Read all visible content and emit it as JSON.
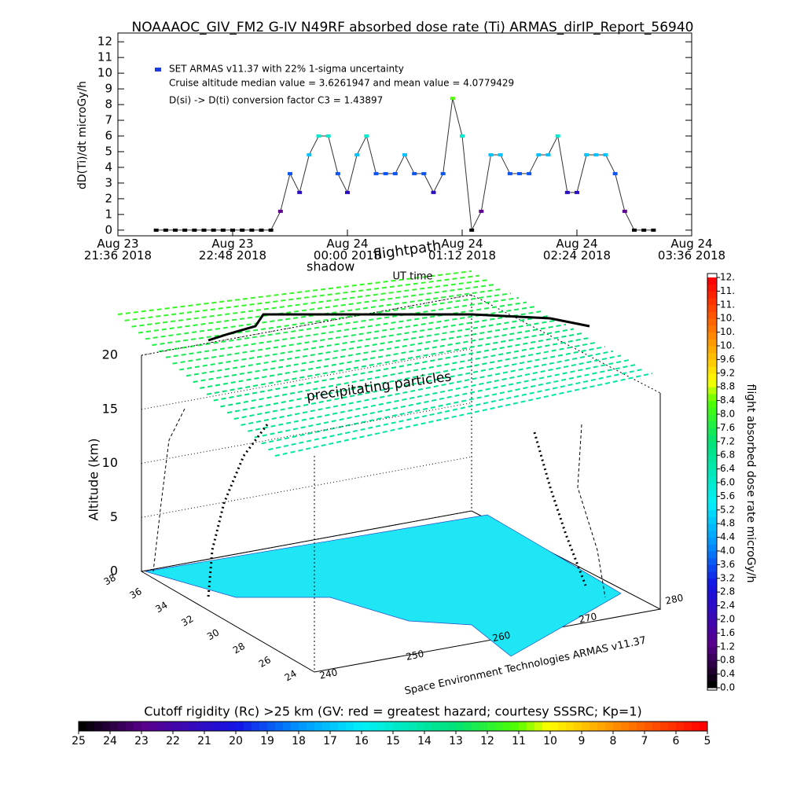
{
  "chart_data": [
    {
      "type": "scatter",
      "title": "NOAAAOC_GIV_FM2 G-IV   N49RF  absorbed dose rate (Ti) ARMAS_dirIP_Report_56940",
      "ylabel": "dD(Ti)/dt microGy/h",
      "xlabel": "UT time",
      "xlim": [
        21.6,
        27.6
      ],
      "xticks": [
        {
          "value": 21.6,
          "label": "Aug 23\n21:36 2018"
        },
        {
          "value": 22.8,
          "label": "Aug 23\n22:48 2018"
        },
        {
          "value": 24.0,
          "label": "Aug 24\n00:00 2018"
        },
        {
          "value": 25.2,
          "label": "Aug 24\n01:12 2018"
        },
        {
          "value": 26.4,
          "label": "Aug 24\n02:24 2018"
        },
        {
          "value": 27.6,
          "label": "Aug 24\n03:36 2018"
        }
      ],
      "ylim": [
        -0.36,
        12.56
      ],
      "yticks": [
        0,
        1,
        2,
        3,
        4,
        5,
        6,
        7,
        8,
        9,
        10,
        11,
        12
      ],
      "annotations": [
        "Cruise altitude median value = 3.6261947 and mean value = 4.0779429",
        "D(si) -> D(ti) conversion factor C3 = 1.43897"
      ],
      "series": [
        {
          "name": "SET ARMAS v11.37 with 22% 1-sigma uncertainty",
          "color": "#1e3cdc",
          "x": [
            22.0,
            22.1,
            22.2,
            22.3,
            22.4,
            22.5,
            22.6,
            22.7,
            22.8,
            22.9,
            23.0,
            23.1,
            23.2,
            23.3,
            23.4,
            23.5,
            23.6,
            23.7,
            23.8,
            23.9,
            24.0,
            24.1,
            24.2,
            24.3,
            24.4,
            24.5,
            24.6,
            24.7,
            24.8,
            24.9,
            25.0,
            25.1,
            25.2,
            25.3,
            25.4,
            25.5,
            25.6,
            25.7,
            25.8,
            25.9,
            26.0,
            26.1,
            26.2,
            26.3,
            26.4,
            26.5,
            26.6,
            26.7,
            26.8,
            26.9,
            27.0,
            27.1,
            27.2
          ],
          "values": [
            0,
            0,
            0,
            0,
            0,
            0,
            0,
            0,
            0,
            0,
            0,
            0,
            0,
            1.2,
            3.6,
            2.4,
            4.8,
            6.0,
            6.0,
            3.6,
            2.4,
            4.8,
            6.0,
            3.6,
            3.6,
            3.6,
            4.8,
            3.6,
            3.6,
            2.4,
            3.6,
            8.4,
            6.0,
            0,
            1.2,
            4.8,
            4.8,
            3.6,
            3.6,
            3.6,
            4.8,
            4.8,
            6.0,
            2.4,
            2.4,
            4.8,
            4.8,
            4.8,
            3.6,
            1.2,
            0,
            0,
            0
          ]
        }
      ]
    },
    {
      "type": "surface3d",
      "annotations": [
        "flightpath",
        "shadow",
        "precipitating particles"
      ],
      "zlabel": "Altitude (km)",
      "zlim": [
        0,
        20
      ],
      "zticks": [
        0,
        5,
        10,
        15,
        20
      ],
      "latticks": [
        38,
        36,
        34,
        32,
        30,
        28,
        26,
        24
      ],
      "lonticks": [
        240,
        250,
        260,
        270,
        280
      ],
      "credit": "Space Environment Technologies ARMAS v11.37"
    },
    {
      "type": "colorbar",
      "orientation": "vertical",
      "label": "flight absorbed dose rate microGy/h",
      "lim": [
        0,
        12
      ],
      "ticks": [
        {
          "value": 0,
          "label": "0.0"
        },
        {
          "value": 0.4,
          "label": "0.4"
        },
        {
          "value": 0.8,
          "label": "0.8"
        },
        {
          "value": 1.2,
          "label": "1.2"
        },
        {
          "value": 1.6,
          "label": "1.6"
        },
        {
          "value": 2.0,
          "label": "2.0"
        },
        {
          "value": 2.4,
          "label": "2.4"
        },
        {
          "value": 2.8,
          "label": "2.8"
        },
        {
          "value": 3.2,
          "label": "3.2"
        },
        {
          "value": 3.6,
          "label": "3.6"
        },
        {
          "value": 4.0,
          "label": "4.0"
        },
        {
          "value": 4.4,
          "label": "4.4"
        },
        {
          "value": 4.8,
          "label": "4.8"
        },
        {
          "value": 5.2,
          "label": "5.2"
        },
        {
          "value": 5.6,
          "label": "5.6"
        },
        {
          "value": 6.0,
          "label": "6.0"
        },
        {
          "value": 6.4,
          "label": "6.4"
        },
        {
          "value": 6.8,
          "label": "6.8"
        },
        {
          "value": 7.2,
          "label": "7.2"
        },
        {
          "value": 7.6,
          "label": "7.6"
        },
        {
          "value": 8.0,
          "label": "8.0"
        },
        {
          "value": 8.4,
          "label": "8.4"
        },
        {
          "value": 8.8,
          "label": "8.8"
        },
        {
          "value": 9.2,
          "label": "9.2"
        },
        {
          "value": 9.6,
          "label": "9.6"
        },
        {
          "value": 10,
          "label": "10."
        },
        {
          "value": 10.4,
          "label": "10."
        },
        {
          "value": 10.8,
          "label": "10."
        },
        {
          "value": 11.2,
          "label": "11."
        },
        {
          "value": 11.6,
          "label": "11."
        },
        {
          "value": 12,
          "label": "12."
        }
      ]
    },
    {
      "type": "colorbar",
      "orientation": "horizontal",
      "label": "Cutoff rigidity (Rc) >25 km (GV: red = greatest hazard; courtesy SSSRC; Kp=1)",
      "lim": [
        25,
        5
      ],
      "ticks": [
        25,
        24,
        23,
        22,
        21,
        20,
        19,
        18,
        17,
        16,
        15,
        14,
        13,
        12,
        11,
        10,
        9,
        8,
        7,
        6,
        5
      ]
    }
  ]
}
